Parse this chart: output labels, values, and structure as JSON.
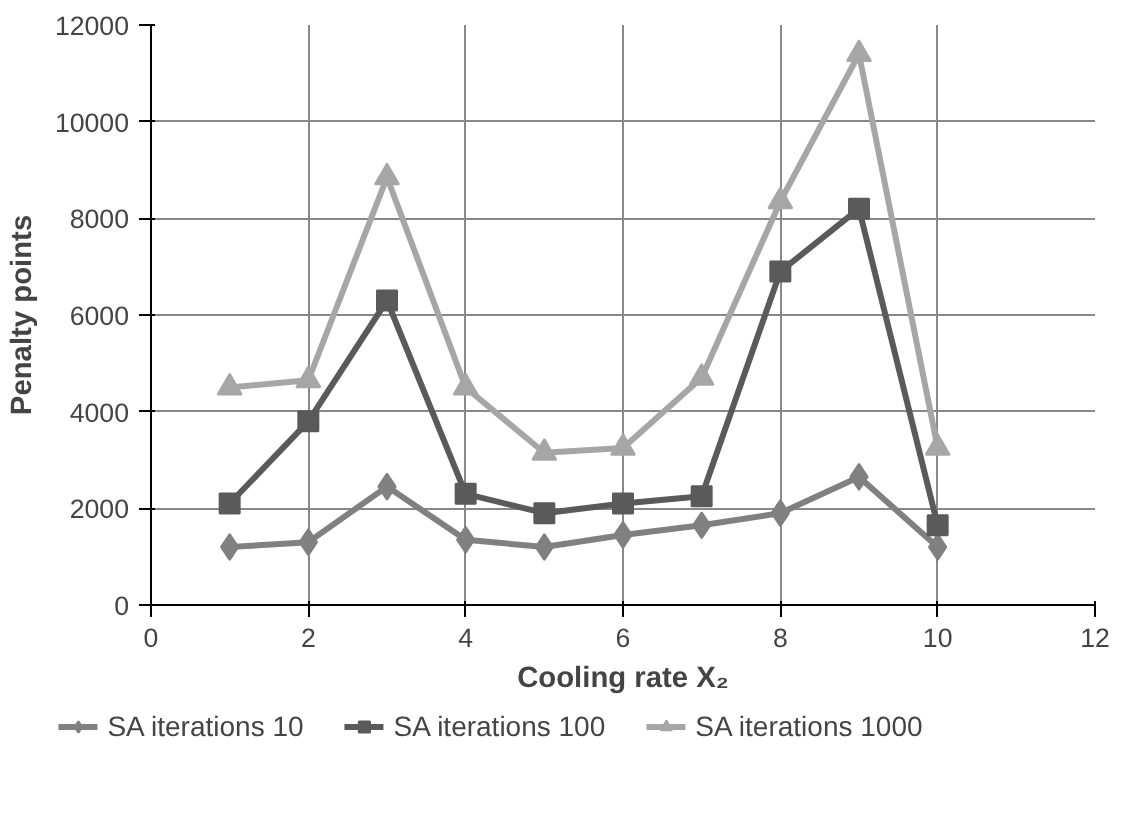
{
  "chart_data": {
    "type": "line",
    "xlabel": "Cooling rate X₂",
    "ylabel": "Penalty points",
    "x": [
      1,
      2,
      3,
      4,
      5,
      6,
      7,
      8,
      9,
      10
    ],
    "series": [
      {
        "name": "SA iterations 10",
        "color": "#808080",
        "marker": "diamond",
        "values": [
          1200,
          1300,
          2450,
          1350,
          1200,
          1450,
          1650,
          1900,
          2650,
          1200
        ]
      },
      {
        "name": "SA iterations 100",
        "color": "#5a5a5a",
        "marker": "square",
        "values": [
          2100,
          3800,
          6300,
          2300,
          1900,
          2100,
          2250,
          6900,
          8200,
          1650
        ]
      },
      {
        "name": "SA iterations 1000",
        "color": "#a6a6a6",
        "marker": "triangle",
        "values": [
          4500,
          4650,
          8850,
          4500,
          3150,
          3250,
          4700,
          8350,
          11400,
          3250
        ]
      }
    ],
    "xlim": [
      0,
      12
    ],
    "xticks": [
      0,
      2,
      4,
      6,
      8,
      10,
      12
    ],
    "ylim": [
      0,
      12000
    ],
    "yticks": [
      0,
      2000,
      4000,
      6000,
      8000,
      10000,
      12000
    ],
    "grid": true,
    "legend": "bottom",
    "line_style": "solid"
  }
}
